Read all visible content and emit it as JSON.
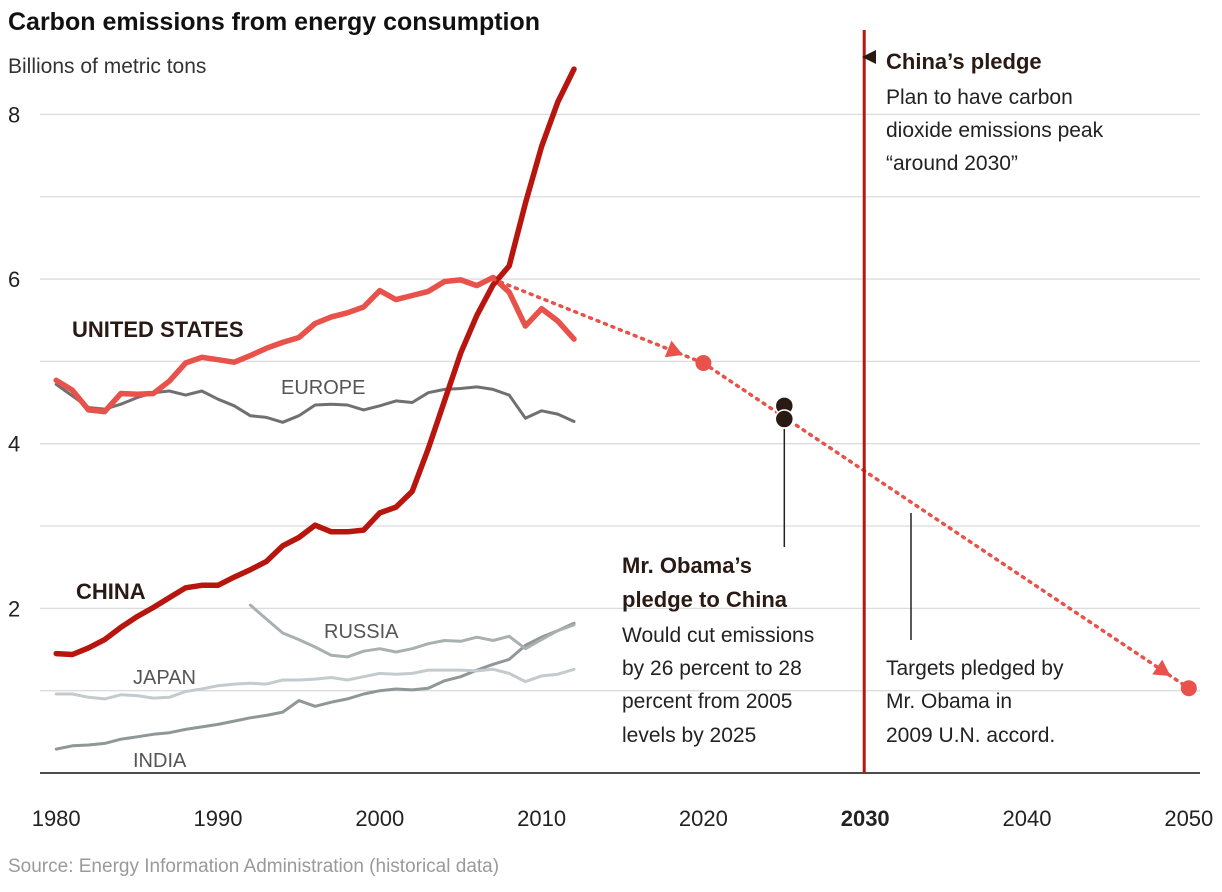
{
  "title": "Carbon emissions from energy consumption",
  "subtitle": "Billions of metric tons",
  "source": "Source: Energy Information Administration (historical data)",
  "colors": {
    "us": "#e8524a",
    "china": "#b8150e",
    "europe": "#707070",
    "russia": "#a8b0b2",
    "japan": "#c3cbce",
    "india": "#8f9797",
    "pledge_line": "#b8150e",
    "projection": "#e8524a",
    "china_pledge_marker": "#2a1a14"
  },
  "chart_data": {
    "type": "line",
    "title": "Carbon emissions from energy consumption",
    "ylabel": "Billions of metric tons",
    "xlim": [
      1979,
      2051
    ],
    "ylim": [
      0,
      8.6
    ],
    "yticks": [
      2,
      4,
      6,
      8
    ],
    "xticks": [
      1980,
      1990,
      2000,
      2010,
      2020,
      2030,
      2040,
      2050
    ],
    "xtick_bold": [
      2030
    ],
    "grid": true,
    "series": [
      {
        "name": "UNITED STATES",
        "key": "us",
        "x": [
          1980,
          1981,
          1982,
          1983,
          1984,
          1985,
          1986,
          1987,
          1988,
          1989,
          1990,
          1991,
          1992,
          1993,
          1994,
          1995,
          1996,
          1997,
          1998,
          1999,
          2000,
          2001,
          2002,
          2003,
          2004,
          2005,
          2006,
          2007,
          2008,
          2009,
          2010,
          2011,
          2012
        ],
        "y": [
          4.77,
          4.65,
          4.41,
          4.39,
          4.61,
          4.6,
          4.61,
          4.76,
          4.98,
          5.05,
          5.02,
          4.99,
          5.07,
          5.16,
          5.23,
          5.29,
          5.46,
          5.54,
          5.59,
          5.66,
          5.86,
          5.75,
          5.8,
          5.85,
          5.97,
          5.99,
          5.92,
          6.02,
          5.84,
          5.43,
          5.64,
          5.49,
          5.27
        ]
      },
      {
        "name": "CHINA",
        "key": "china",
        "x": [
          1980,
          1981,
          1982,
          1983,
          1984,
          1985,
          1986,
          1987,
          1988,
          1989,
          1990,
          1991,
          1992,
          1993,
          1994,
          1995,
          1996,
          1997,
          1998,
          1999,
          2000,
          2001,
          2002,
          2003,
          2004,
          2005,
          2006,
          2007,
          2008,
          2009,
          2010,
          2011,
          2012
        ],
        "y": [
          1.45,
          1.44,
          1.52,
          1.62,
          1.77,
          1.9,
          2.01,
          2.13,
          2.25,
          2.28,
          2.28,
          2.38,
          2.47,
          2.57,
          2.76,
          2.86,
          3.01,
          2.93,
          2.93,
          2.95,
          3.16,
          3.23,
          3.42,
          3.94,
          4.52,
          5.1,
          5.56,
          5.93,
          6.16,
          6.92,
          7.61,
          8.15,
          8.55
        ]
      },
      {
        "name": "EUROPE",
        "key": "europe",
        "x": [
          1980,
          1981,
          1982,
          1983,
          1984,
          1985,
          1986,
          1987,
          1988,
          1989,
          1990,
          1991,
          1992,
          1993,
          1994,
          1995,
          1996,
          1997,
          1998,
          1999,
          2000,
          2001,
          2002,
          2003,
          2004,
          2005,
          2006,
          2007,
          2008,
          2009,
          2010,
          2011,
          2012
        ],
        "y": [
          4.72,
          4.58,
          4.44,
          4.42,
          4.48,
          4.56,
          4.62,
          4.64,
          4.59,
          4.64,
          4.54,
          4.46,
          4.34,
          4.32,
          4.26,
          4.34,
          4.47,
          4.48,
          4.47,
          4.41,
          4.46,
          4.52,
          4.5,
          4.62,
          4.66,
          4.67,
          4.69,
          4.66,
          4.59,
          4.31,
          4.4,
          4.36,
          4.27
        ]
      },
      {
        "name": "RUSSIA",
        "key": "russia",
        "x": [
          1992,
          1993,
          1994,
          1995,
          1996,
          1997,
          1998,
          1999,
          2000,
          2001,
          2002,
          2003,
          2004,
          2005,
          2006,
          2007,
          2008,
          2009,
          2010,
          2011,
          2012
        ],
        "y": [
          2.04,
          1.87,
          1.7,
          1.62,
          1.53,
          1.43,
          1.41,
          1.48,
          1.51,
          1.47,
          1.51,
          1.57,
          1.61,
          1.6,
          1.65,
          1.61,
          1.66,
          1.51,
          1.62,
          1.73,
          1.8
        ]
      },
      {
        "name": "JAPAN",
        "key": "japan",
        "x": [
          1980,
          1981,
          1982,
          1983,
          1984,
          1985,
          1986,
          1987,
          1988,
          1989,
          1990,
          1991,
          1992,
          1993,
          1994,
          1995,
          1996,
          1997,
          1998,
          1999,
          2000,
          2001,
          2002,
          2003,
          2004,
          2005,
          2006,
          2007,
          2008,
          2009,
          2010,
          2011,
          2012
        ],
        "y": [
          0.96,
          0.96,
          0.92,
          0.9,
          0.95,
          0.94,
          0.91,
          0.92,
          0.99,
          1.02,
          1.06,
          1.08,
          1.09,
          1.08,
          1.13,
          1.13,
          1.14,
          1.16,
          1.13,
          1.17,
          1.21,
          1.2,
          1.21,
          1.25,
          1.25,
          1.25,
          1.24,
          1.26,
          1.21,
          1.11,
          1.18,
          1.2,
          1.26
        ]
      },
      {
        "name": "INDIA",
        "key": "india",
        "x": [
          1980,
          1981,
          1982,
          1983,
          1984,
          1985,
          1986,
          1987,
          1988,
          1989,
          1990,
          1991,
          1992,
          1993,
          1994,
          1995,
          1996,
          1997,
          1998,
          1999,
          2000,
          2001,
          2002,
          2003,
          2004,
          2005,
          2006,
          2007,
          2008,
          2009,
          2010,
          2011,
          2012
        ],
        "y": [
          0.29,
          0.33,
          0.34,
          0.36,
          0.41,
          0.44,
          0.47,
          0.49,
          0.53,
          0.56,
          0.59,
          0.63,
          0.67,
          0.7,
          0.74,
          0.88,
          0.81,
          0.86,
          0.9,
          0.96,
          1.0,
          1.02,
          1.01,
          1.03,
          1.12,
          1.17,
          1.25,
          1.32,
          1.38,
          1.55,
          1.65,
          1.73,
          1.82
        ]
      }
    ],
    "us_projection": {
      "x": [
        2007,
        2020,
        2050
      ],
      "y": [
        6.0,
        4.98,
        1.03
      ],
      "target_points": [
        {
          "x": 2020,
          "y": 4.98
        },
        {
          "x": 2050,
          "y": 1.03
        }
      ]
    },
    "obama_pledge_points": [
      {
        "x": 2025,
        "y": 4.46
      },
      {
        "x": 2025,
        "y": 4.3
      }
    ],
    "china_pledge_year": 2030
  },
  "labels": {
    "us": "UNITED STATES",
    "china": "CHINA",
    "europe": "EUROPE",
    "russia": "RUSSIA",
    "japan": "JAPAN",
    "india": "INDIA"
  },
  "annotations": {
    "china_pledge": {
      "heading": "China’s pledge",
      "lines": [
        "Plan to have carbon",
        "dioxide emissions peak",
        "“around 2030”"
      ]
    },
    "obama_pledge": {
      "heading_lines": [
        "Mr. Obama’s",
        "pledge to China"
      ],
      "lines": [
        "Would cut emissions",
        "by 26 percent to 28",
        "percent from 2005",
        "levels by 2025"
      ]
    },
    "un_accord": {
      "lines": [
        "Targets pledged by",
        "Mr. Obama in",
        "2009 U.N. accord."
      ]
    }
  }
}
